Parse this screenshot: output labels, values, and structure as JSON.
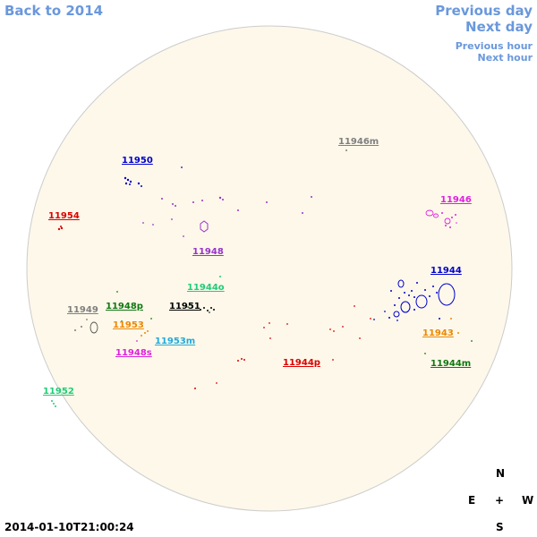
{
  "nav": {
    "back": "Back to 2014",
    "previous_day": "Previous day",
    "next_day": "Next day",
    "previous_hour": "Previous hour",
    "next_hour": "Next hour"
  },
  "timestamp": "2014-01-10T21:00:24",
  "compass": {
    "north": "N",
    "south": "S",
    "east": "E",
    "west": "W",
    "center": "+"
  },
  "colors": {
    "link": "#6a98dc",
    "disk": "#fdf8ea",
    "disk_edge": "#cccccc"
  },
  "regions": [
    {
      "id": "11946m",
      "label": "11946m",
      "color": "#808080"
    },
    {
      "id": "11950",
      "label": "11950",
      "color": "#0000cc"
    },
    {
      "id": "11946",
      "label": "11946",
      "color": "#e020e0"
    },
    {
      "id": "11954",
      "label": "11954",
      "color": "#dd0000"
    },
    {
      "id": "11948",
      "label": "11948",
      "color": "#9933cc"
    },
    {
      "id": "11944",
      "label": "11944",
      "color": "#0000cc"
    },
    {
      "id": "11944o",
      "label": "11944o",
      "color": "#22cc77"
    },
    {
      "id": "11949",
      "label": "11949",
      "color": "#808080"
    },
    {
      "id": "11948p",
      "label": "11948p",
      "color": "#117711"
    },
    {
      "id": "11951",
      "label": "11951",
      "color": "#000000"
    },
    {
      "id": "11953",
      "label": "11953",
      "color": "#ee8800"
    },
    {
      "id": "11943",
      "label": "11943",
      "color": "#ee8800"
    },
    {
      "id": "11953m",
      "label": "11953m",
      "color": "#22aadd"
    },
    {
      "id": "11948s",
      "label": "11948s",
      "color": "#dd22dd"
    },
    {
      "id": "11944p",
      "label": "11944p",
      "color": "#dd0000"
    },
    {
      "id": "11944m",
      "label": "11944m",
      "color": "#117711"
    },
    {
      "id": "11952",
      "label": "11952",
      "color": "#22cc77"
    }
  ]
}
